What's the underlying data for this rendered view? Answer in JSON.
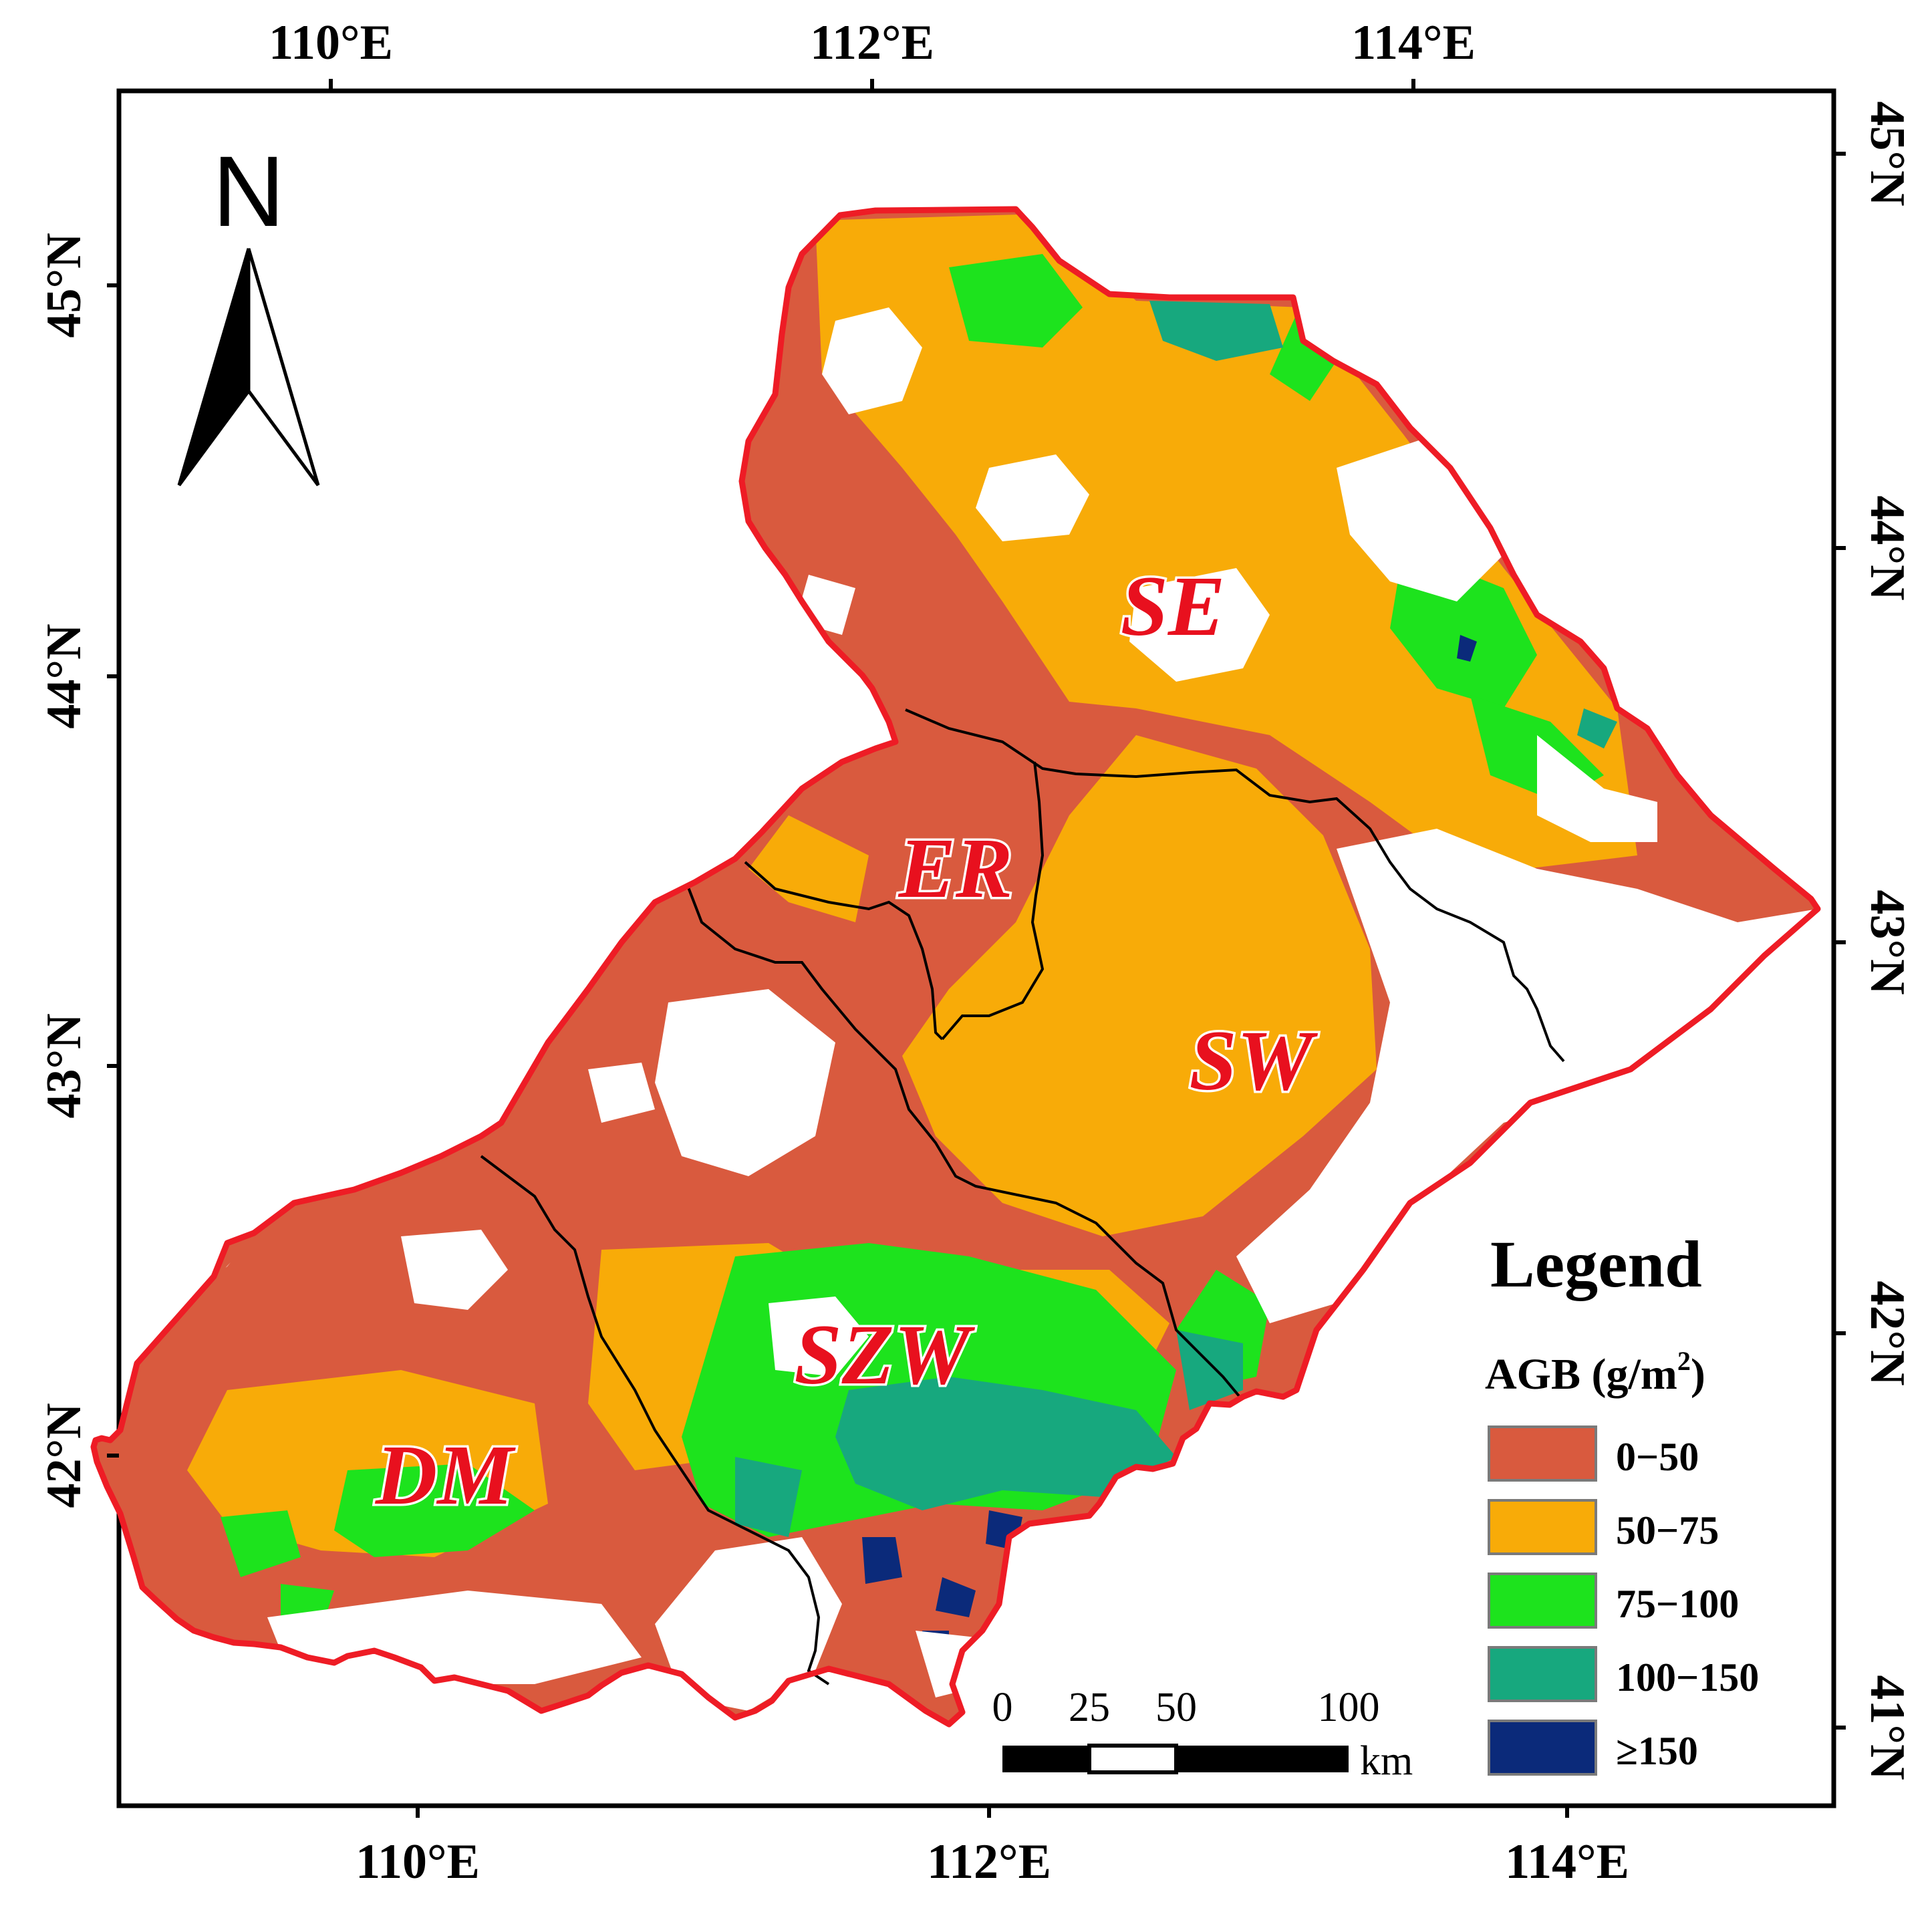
{
  "axes": {
    "top_ticks": [
      "110°E",
      "112°E",
      "114°E"
    ],
    "bottom_ticks": [
      "110°E",
      "112°E",
      "114°E"
    ],
    "left_ticks": [
      "45°N",
      "44°N",
      "43°N",
      "42°N"
    ],
    "right_ticks": [
      "45°N",
      "44°N",
      "43°N",
      "42°N",
      "41°N"
    ]
  },
  "north_arrow": {
    "label": "N",
    "icon": "north-arrow-icon"
  },
  "regions": [
    "SE",
    "ER",
    "SW",
    "SZW",
    "DM"
  ],
  "legend": {
    "title": "Legend",
    "subtitle_prefix": "AGB (g/m",
    "subtitle_exp": "2",
    "subtitle_suffix": ")",
    "classes": [
      {
        "label": "0−50",
        "color": "#d95a3e"
      },
      {
        "label": "50−75",
        "color": "#f8ab08"
      },
      {
        "label": "75−100",
        "color": "#1de31d"
      },
      {
        "label": "100−150",
        "color": "#17a87e"
      },
      {
        "label": "≥150",
        "color": "#0b2a7a"
      }
    ]
  },
  "scale_bar": {
    "labels": [
      "0",
      "25",
      "50",
      "100"
    ],
    "unit": "km"
  },
  "colors": {
    "boundary": "#ee1c25",
    "subregion_lines": "#000000"
  }
}
